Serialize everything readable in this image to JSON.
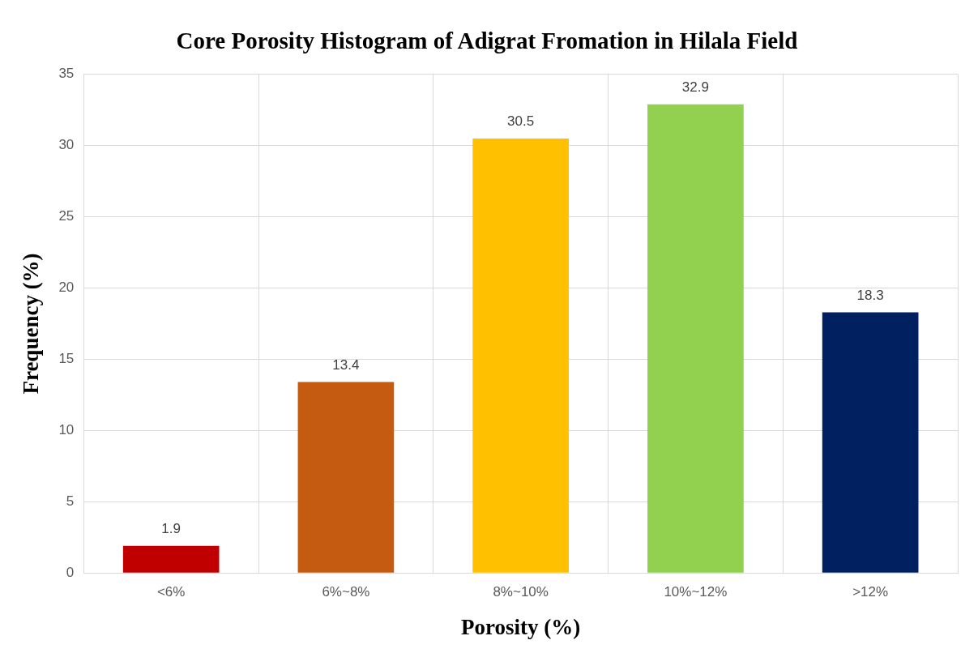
{
  "chart_data": {
    "type": "bar",
    "title": "Core Porosity Histogram of Adigrat Fromation in Hilala Field",
    "xlabel": "Porosity (%)",
    "ylabel": "Frequency (%)",
    "categories": [
      "<6%",
      "6%~8%",
      "8%~10%",
      "10%~12%",
      ">12%"
    ],
    "values": [
      1.9,
      13.4,
      30.5,
      32.9,
      18.3
    ],
    "colors": [
      "#c00000",
      "#c55a11",
      "#ffc000",
      "#92d050",
      "#002060"
    ],
    "ylim": [
      0,
      35
    ],
    "yticks": [
      0,
      5,
      10,
      15,
      20,
      25,
      30,
      35
    ],
    "grid": true,
    "data_labels": true
  }
}
